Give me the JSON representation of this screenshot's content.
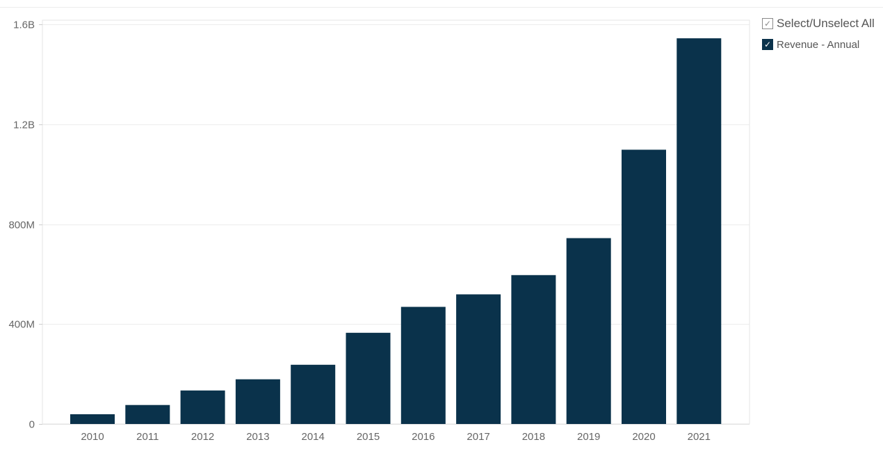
{
  "legend": {
    "select_all_label": "Select/Unselect All",
    "select_all_check": "✓",
    "series_label": "Revenue - Annual",
    "series_check": "✓",
    "series_color": "#0a324b"
  },
  "chart_data": {
    "type": "bar",
    "categories": [
      "2010",
      "2011",
      "2012",
      "2013",
      "2014",
      "2015",
      "2016",
      "2017",
      "2018",
      "2019",
      "2020",
      "2021"
    ],
    "series": [
      {
        "name": "Revenue - Annual",
        "color": "#0a324b",
        "values": [
          39000000,
          76000000,
          134000000,
          179000000,
          237000000,
          365000000,
          469000000,
          519000000,
          596000000,
          744000000,
          1098000000,
          1544000000
        ]
      }
    ],
    "y_ticks": [
      {
        "value": 0,
        "label": "0"
      },
      {
        "value": 400000000,
        "label": "400M"
      },
      {
        "value": 800000000,
        "label": "800M"
      },
      {
        "value": 1200000000,
        "label": "1.2B"
      },
      {
        "value": 1600000000,
        "label": "1.6B"
      }
    ],
    "ylim": [
      0,
      1600000000
    ],
    "title": "",
    "xlabel": "",
    "ylabel": "",
    "grid": true,
    "legend_position": "top-right"
  }
}
